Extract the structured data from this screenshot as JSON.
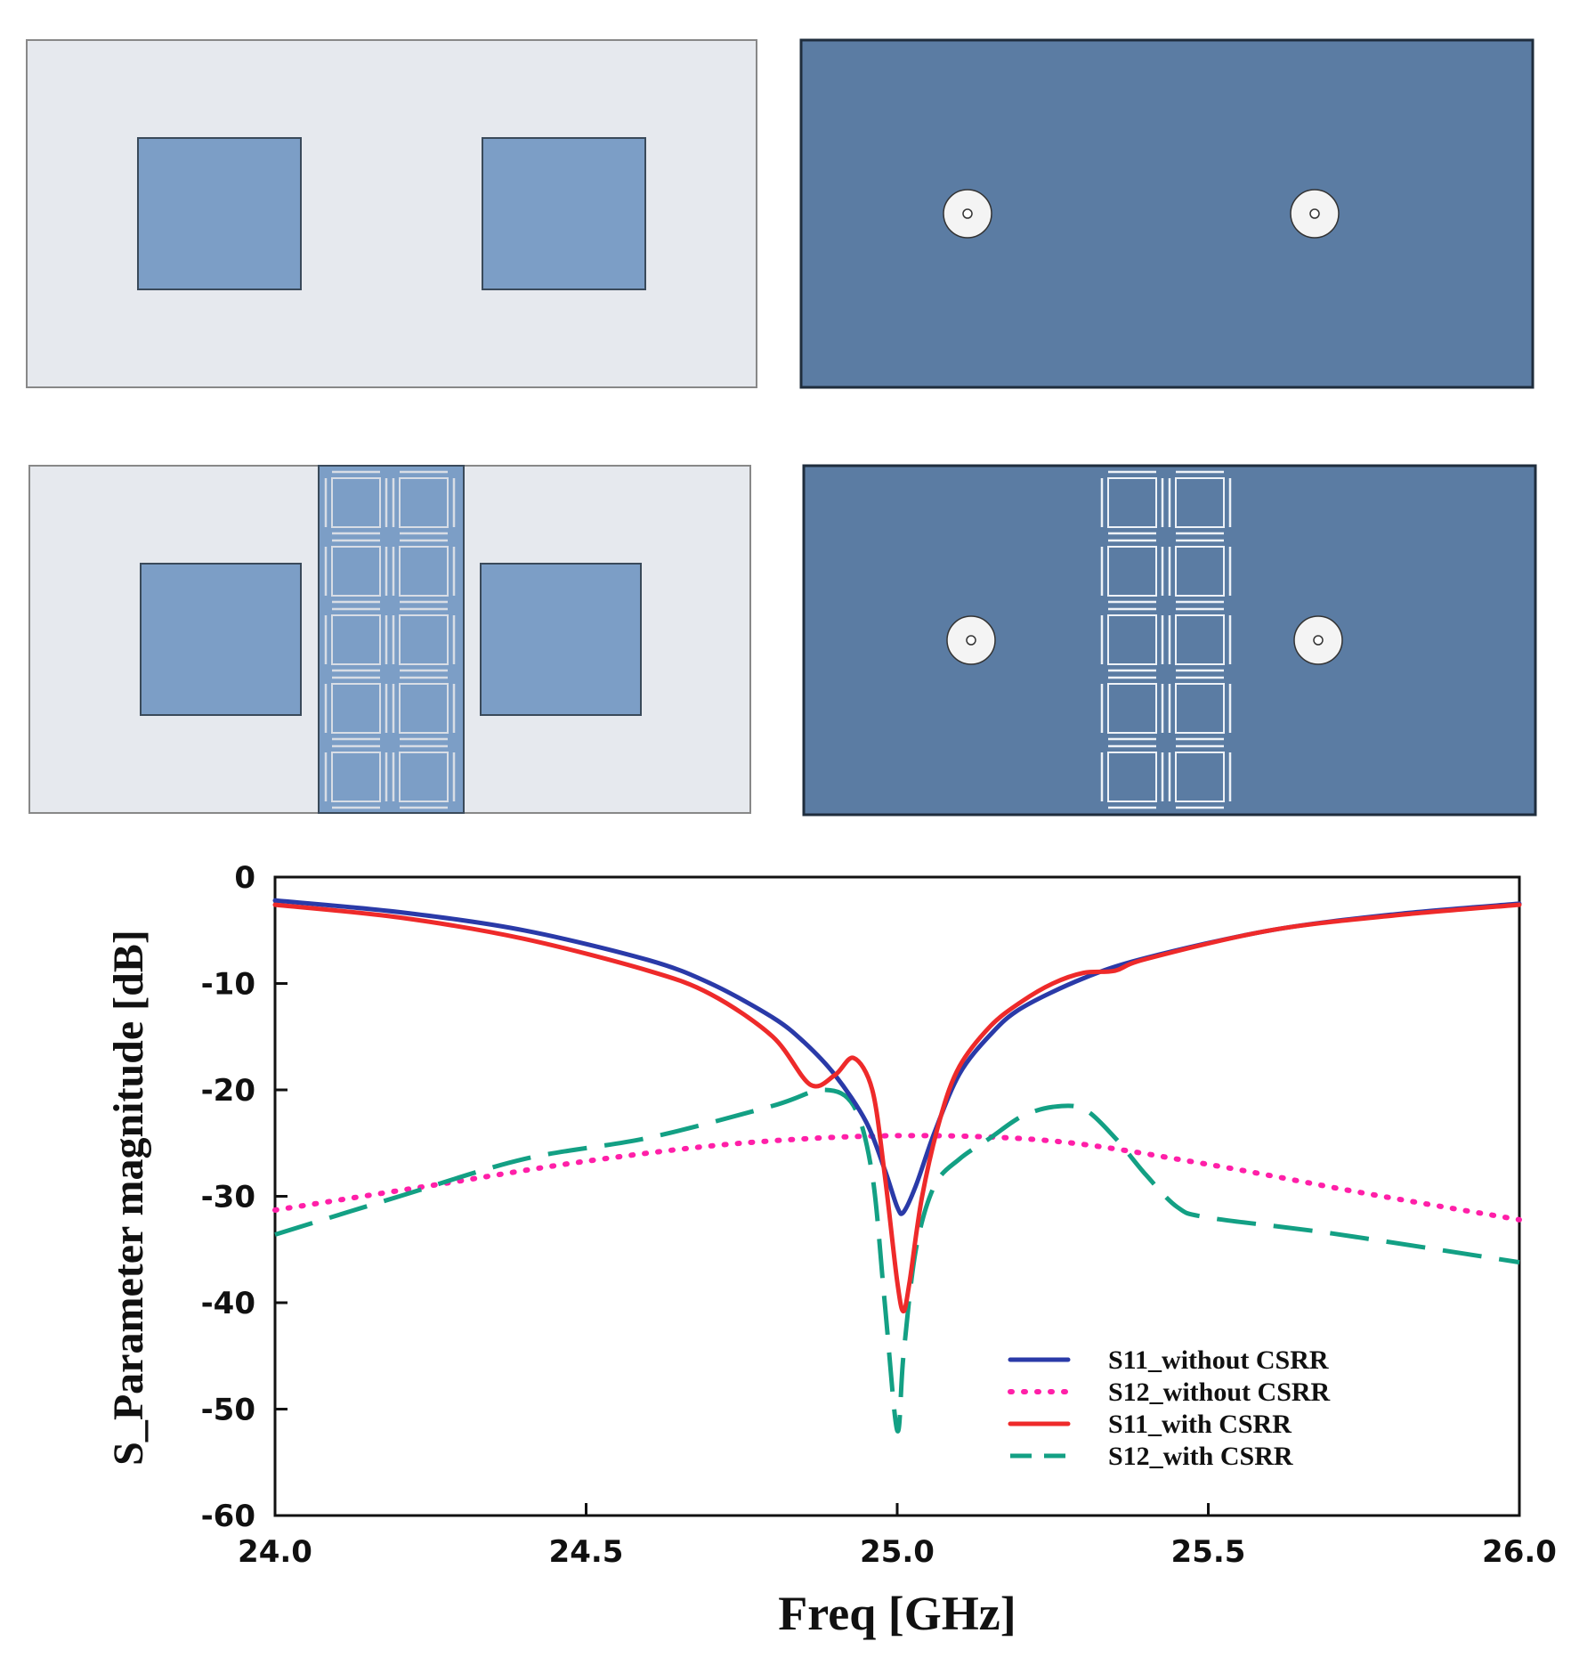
{
  "colors": {
    "substrate": "#e6e9ee",
    "patch": "#7c9ec6",
    "ground": "#5b7ca3",
    "port": "#f4f4f4",
    "s11_without": "#2a3aa8",
    "s12_without": "#ff1fa8",
    "s11_with": "#ee2a2a",
    "s12_with": "#13a084"
  },
  "diagrams": {
    "top_left": {
      "name": "antenna-top-view-without-csrr"
    },
    "top_right": {
      "name": "antenna-bottom-view-without-csrr"
    },
    "bottom_left": {
      "name": "antenna-top-view-with-csrr",
      "csrr_rows": 5,
      "csrr_cols": 2
    },
    "bottom_right": {
      "name": "antenna-bottom-view-with-csrr",
      "csrr_rows": 5,
      "csrr_cols": 2
    }
  },
  "chart_data": {
    "type": "line",
    "xlabel": "Freq [GHz]",
    "ylabel": "S_Parameter magnitude [dB]",
    "xlim": [
      24.0,
      26.0
    ],
    "ylim": [
      -60,
      0
    ],
    "xticks": [
      24.0,
      24.5,
      25.0,
      25.5,
      26.0
    ],
    "xtick_labels": [
      "24.0",
      "24.5",
      "25.0",
      "25.5",
      "26.0"
    ],
    "yticks": [
      0,
      -10,
      -20,
      -30,
      -40,
      -50,
      -60
    ],
    "ytick_labels": [
      "0",
      "-10",
      "-20",
      "-30",
      "-40",
      "-50",
      "-60"
    ],
    "grid": false,
    "legend_position": "bottom-right",
    "series": [
      {
        "name": "S11_without CSRR",
        "style": "solid",
        "color_key": "s11_without",
        "x": [
          24.0,
          24.2,
          24.4,
          24.6,
          24.7,
          24.8,
          24.85,
          24.9,
          24.95,
          24.98,
          25.0,
          25.01,
          25.03,
          25.06,
          25.1,
          25.15,
          25.2,
          25.3,
          25.4,
          25.6,
          25.8,
          26.0
        ],
        "y": [
          -2.2,
          -3.3,
          -5.0,
          -7.8,
          -10.0,
          -13.2,
          -15.5,
          -18.6,
          -23.0,
          -27.5,
          -31.0,
          -31.5,
          -29.0,
          -24.0,
          -18.5,
          -14.8,
          -12.3,
          -9.5,
          -7.6,
          -5.0,
          -3.5,
          -2.5
        ]
      },
      {
        "name": "S12_without CSRR",
        "style": "dotted",
        "color_key": "s12_without",
        "x": [
          24.0,
          24.25,
          24.5,
          24.75,
          25.0,
          25.25,
          25.5,
          25.75,
          26.0
        ],
        "y": [
          -31.3,
          -29.0,
          -26.7,
          -25.0,
          -24.3,
          -24.8,
          -27.0,
          -29.7,
          -32.2
        ]
      },
      {
        "name": "S11_with CSRR",
        "style": "solid",
        "color_key": "s11_with",
        "x": [
          24.0,
          24.2,
          24.4,
          24.6,
          24.7,
          24.8,
          24.86,
          24.9,
          24.93,
          24.96,
          24.98,
          25.0,
          25.01,
          25.02,
          25.04,
          25.07,
          25.1,
          25.15,
          25.2,
          25.25,
          25.3,
          25.35,
          25.4,
          25.6,
          25.8,
          26.0
        ],
        "y": [
          -2.6,
          -3.8,
          -5.8,
          -8.8,
          -11.0,
          -15.0,
          -19.5,
          -18.6,
          -17.0,
          -20.0,
          -28.0,
          -38.0,
          -40.8,
          -38.0,
          -30.0,
          -22.5,
          -17.8,
          -14.0,
          -11.7,
          -10.0,
          -9.0,
          -8.8,
          -7.7,
          -5.0,
          -3.6,
          -2.6
        ]
      },
      {
        "name": "S12_with CSRR",
        "style": "dashed",
        "color_key": "s12_with",
        "x": [
          24.0,
          24.2,
          24.4,
          24.6,
          24.8,
          24.88,
          24.93,
          24.96,
          24.98,
          25.0,
          25.01,
          25.03,
          25.06,
          25.1,
          25.15,
          25.2,
          25.25,
          25.3,
          25.35,
          25.4,
          25.45,
          25.5,
          25.7,
          26.0
        ],
        "y": [
          -33.6,
          -30.0,
          -26.5,
          -24.5,
          -21.5,
          -20.0,
          -21.5,
          -28.0,
          -40.0,
          -52.0,
          -45.0,
          -35.0,
          -29.0,
          -26.5,
          -24.5,
          -22.5,
          -21.6,
          -21.8,
          -24.5,
          -28.0,
          -31.0,
          -32.0,
          -33.5,
          -36.2
        ]
      }
    ]
  }
}
